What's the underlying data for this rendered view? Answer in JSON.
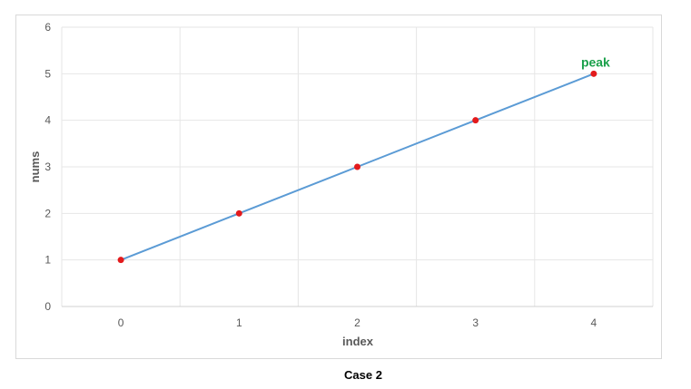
{
  "caption": "Case 2",
  "colors": {
    "line": "#5b9bd5",
    "marker": "#e31a1c",
    "annotation": "#1aa04a",
    "grid": "#e6e6e6",
    "axis_text": "#595959"
  },
  "chart_data": {
    "type": "line",
    "x": [
      0,
      1,
      2,
      3,
      4
    ],
    "series": [
      {
        "values": [
          1,
          2,
          3,
          4,
          5
        ]
      }
    ],
    "xlabel": "index",
    "ylabel": "nums",
    "ylim": [
      0,
      6
    ],
    "yticks": [
      0,
      1,
      2,
      3,
      4,
      5,
      6
    ],
    "grid": true,
    "annotations": [
      {
        "text": "peak",
        "x": 4,
        "y": 5
      }
    ]
  }
}
